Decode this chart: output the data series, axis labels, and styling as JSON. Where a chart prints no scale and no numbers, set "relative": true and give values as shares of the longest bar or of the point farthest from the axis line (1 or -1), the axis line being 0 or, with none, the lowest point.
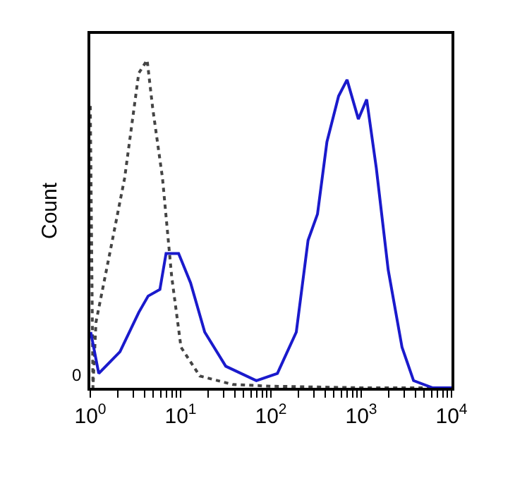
{
  "chart_data": {
    "type": "line",
    "ylabel": "Count",
    "relative": true,
    "log": "x",
    "grid": false,
    "marker": "none",
    "xlim": [
      1,
      10000
    ],
    "xticks": [
      {
        "value": 1,
        "label": "10$^{0}$"
      },
      {
        "value": 2,
        "label": null
      },
      {
        "value": 3,
        "label": null
      },
      {
        "value": 4,
        "label": null
      },
      {
        "value": 5,
        "label": null
      },
      {
        "value": 6,
        "label": null
      },
      {
        "value": 7,
        "label": null
      },
      {
        "value": 8,
        "label": null
      },
      {
        "value": 9,
        "label": null
      },
      {
        "value": 10,
        "label": "10$^{1}$"
      },
      {
        "value": 20,
        "label": null
      },
      {
        "value": 30,
        "label": null
      },
      {
        "value": 40,
        "label": null
      },
      {
        "value": 50,
        "label": null
      },
      {
        "value": 60,
        "label": null
      },
      {
        "value": 70,
        "label": null
      },
      {
        "value": 80,
        "label": null
      },
      {
        "value": 90,
        "label": null
      },
      {
        "value": 100,
        "label": "10$^{2}$"
      },
      {
        "value": 200,
        "label": null
      },
      {
        "value": 300,
        "label": null
      },
      {
        "value": 400,
        "label": null
      },
      {
        "value": 500,
        "label": null
      },
      {
        "value": 600,
        "label": null
      },
      {
        "value": 700,
        "label": null
      },
      {
        "value": 800,
        "label": null
      },
      {
        "value": 900,
        "label": null
      },
      {
        "value": 1000,
        "label": "10$^{3}$"
      },
      {
        "value": 2000,
        "label": null
      },
      {
        "value": 3000,
        "label": null
      },
      {
        "value": 4000,
        "label": null
      },
      {
        "value": 5000,
        "label": null
      },
      {
        "value": 6000,
        "label": null
      },
      {
        "value": 7000,
        "label": null
      },
      {
        "value": 8000,
        "label": null
      },
      {
        "value": 9000,
        "label": null
      },
      {
        "value": 10000,
        "label": "10$^{4}$"
      }
    ],
    "annotations": [
      "0"
    ],
    "series": [
      {
        "color": "#444444",
        "line_style": "dotted",
        "x": [
          1,
          1.07,
          1.155,
          1.67,
          2.4,
          3.44,
          4.26,
          4.9,
          6.3,
          7.96,
          10.1,
          16.3,
          38,
          100,
          1000,
          10000
        ],
        "values": [
          0.86,
          0,
          0.2,
          0.42,
          0.64,
          0.96,
          1,
          0.855,
          0.64,
          0.34,
          0.124,
          0.036,
          0.01,
          0.005,
          0,
          0
        ]
      },
      {
        "color": "#1a1acc",
        "line_style": "solid",
        "x": [
          1.01,
          1.24,
          2.13,
          3.44,
          4.37,
          5.9,
          6.9,
          9.5,
          12.9,
          18.5,
          31.6,
          69,
          118,
          191,
          258,
          328,
          417,
          562,
          697,
          930,
          1150,
          1470,
          1990,
          2830,
          3800,
          6200,
          10000
        ],
        "values": [
          0.17,
          0.044,
          0.11,
          0.23,
          0.28,
          0.3,
          0.41,
          0.41,
          0.32,
          0.17,
          0.066,
          0.022,
          0.044,
          0.17,
          0.45,
          0.53,
          0.75,
          0.89,
          0.94,
          0.82,
          0.88,
          0.67,
          0.36,
          0.124,
          0.022,
          0,
          0
        ]
      }
    ]
  }
}
